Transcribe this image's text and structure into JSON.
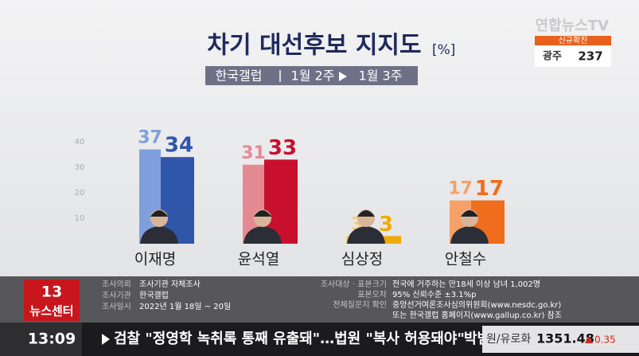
{
  "chart_data": {
    "type": "bar",
    "title": "차기 대선후보 지지도",
    "unit": "[%]",
    "source": "한국갤럽",
    "categories": [
      "이재명",
      "윤석열",
      "심상정",
      "안철수"
    ],
    "series": [
      {
        "name": "1월 2주",
        "colors": [
          "#7f9fdc",
          "#e58a92",
          "#f3cf78",
          "#f6a06a"
        ],
        "values": [
          37,
          31,
          3,
          17
        ]
      },
      {
        "name": "1월 3주",
        "colors": [
          "#2f56a9",
          "#c8102e",
          "#eeaa05",
          "#ef6d1c"
        ],
        "values": [
          34,
          33,
          3,
          17
        ]
      }
    ],
    "ylim": [
      0,
      40
    ],
    "yticks": [
      10,
      20,
      30,
      40
    ],
    "grid": false
  },
  "logo": "연합뉴스TV",
  "covid": {
    "label": "신규확진",
    "region": "광주",
    "count": 237
  },
  "survey": {
    "left": [
      [
        "조사의뢰",
        "조사기관 자체조사"
      ],
      [
        "조사기관",
        "한국갤럽"
      ],
      [
        "조사일시",
        "2022년 1월 18일 ~ 20일"
      ]
    ],
    "right": [
      [
        "조사대상 · 표본크기",
        "전국에 거주하는 만18세 이상 남녀 1,002명"
      ],
      [
        "표본오차",
        "95% 신뢰수준 ±3.1%p"
      ],
      [
        "전체질문지 확인",
        "중앙선거여론조사심의위원회(www.nesdc.go.kr)",
        "또는 한국갤럽 홈페이지(www.gallup.co.kr) 참조"
      ]
    ]
  },
  "program": {
    "number": "13",
    "name": "뉴스센터"
  },
  "ticker": {
    "time": "13:09",
    "headline": "검찰 \"정영학 녹취록 통째 유출돼\"…법원 \"복사 허용돼야\"",
    "next": "박범",
    "market": "원/유로화",
    "rate": 1351.48,
    "change": 0.35
  }
}
